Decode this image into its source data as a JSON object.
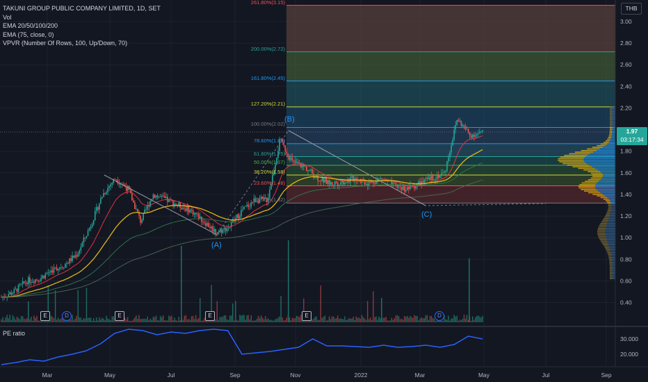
{
  "legend": {
    "symbol": "TAKUNI GROUP PUBLIC COMPANY LIMITED, 1D, SET",
    "vol": "Vol",
    "ema1": "EMA 20/50/100/200",
    "ema2": "EMA (75, close, 0)",
    "vpvr": "VPVR (Number Of Rows, 100, Up/Down, 70)"
  },
  "currency": "THB",
  "price_axis": [
    "3.00",
    "2.80",
    "2.60",
    "2.40",
    "2.20",
    "1.80",
    "1.60",
    "1.40",
    "1.20",
    "1.00",
    "0.80",
    "0.60",
    "0.40"
  ],
  "last_price": "1.97",
  "countdown": "03:17:34",
  "time_axis": [
    "Mar",
    "May",
    "Jul",
    "Sep",
    "Nov",
    "2022",
    "Mar",
    "May",
    "Jul",
    "Sep"
  ],
  "fib_levels": [
    {
      "label": "261.80%(3.15)",
      "color": "#ef5350"
    },
    {
      "label": "200.00%(2.72)",
      "color": "#26a69a"
    },
    {
      "label": "161.80%(2.45)",
      "color": "#2196f3"
    },
    {
      "label": "127.20%(2.21)",
      "color": "#cddc39"
    },
    {
      "label": "100.00%(2.02)",
      "color": "#787b86"
    },
    {
      "label": "78.60%(1.87)",
      "color": "#2196f3"
    },
    {
      "label": "61.80%(1.75)",
      "color": "#26a69a"
    },
    {
      "label": "50.00%(1.67)",
      "color": "#4caf50"
    },
    {
      "label": "38.20%(1.58)",
      "color": "#cddc39"
    },
    {
      "label": "23.60%(1.48)",
      "color": "#ef5350"
    },
    {
      "label": "0.00%(1.32)",
      "color": "#787b86"
    }
  ],
  "waves": {
    "a": "(A)",
    "b": "(B)",
    "c": "(C)"
  },
  "events": {
    "earnings": "E",
    "dividend": "D"
  },
  "pe": {
    "label": "PE ratio",
    "axis": [
      "30.000",
      "20.000"
    ],
    "color": "#2962ff"
  },
  "chart_data": {
    "type": "line",
    "title": "TAKUNI GROUP PUBLIC COMPANY LIMITED, 1D, SET",
    "series": [
      {
        "values": [
          0.45,
          0.5,
          0.6,
          0.62,
          0.7,
          0.75,
          0.85,
          1.1,
          1.4,
          1.55,
          1.45,
          1.15,
          1.4,
          1.35,
          1.3,
          1.25,
          1.15,
          1.05,
          1.1,
          1.25,
          1.35,
          1.35,
          1.9,
          1.7,
          1.65,
          1.55,
          1.5,
          1.52,
          1.55,
          1.5,
          1.55,
          1.48,
          1.45,
          1.5,
          1.55,
          1.6,
          2.1,
          1.95,
          1.97
        ]
      }
    ],
    "ylim": [
      0.3,
      3.2
    ]
  }
}
